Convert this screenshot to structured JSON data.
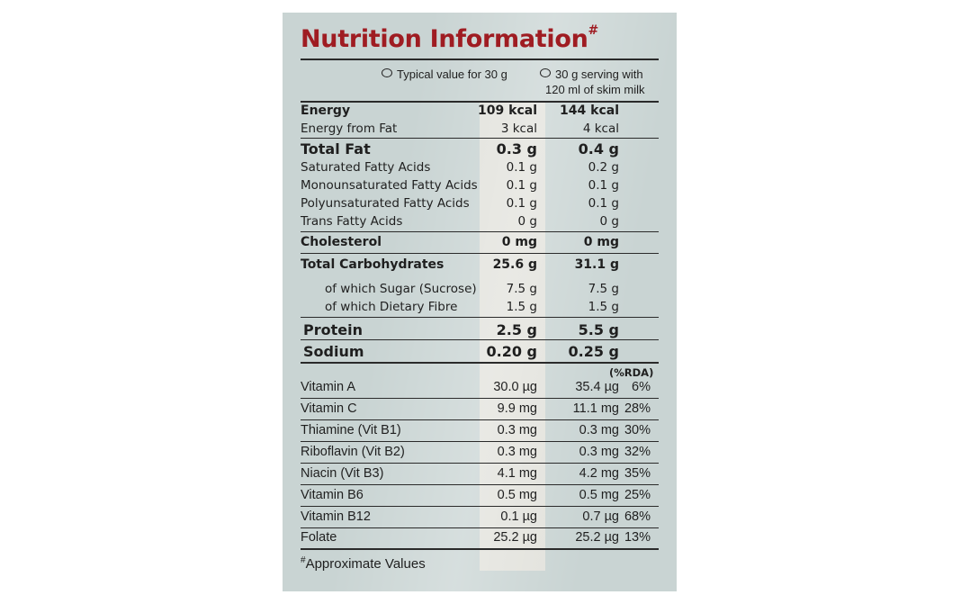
{
  "title": "Nutrition Information",
  "title_mark": "#",
  "columns": {
    "col1": "Typical value for 30 g",
    "col2_line1": "30 g serving with",
    "col2_line2": "120 ml of skim milk"
  },
  "rows": [
    {
      "label": "Energy",
      "v1": "109 kcal",
      "v2": "144 kcal"
    },
    {
      "label": "Energy from Fat",
      "v1": "3 kcal",
      "v2": "4 kcal"
    },
    {
      "label": "Total Fat",
      "v1": "0.3 g",
      "v2": "0.4 g"
    },
    {
      "label": "Saturated Fatty Acids",
      "v1": "0.1 g",
      "v2": "0.2 g"
    },
    {
      "label": "Monounsaturated Fatty Acids",
      "v1": "0.1 g",
      "v2": "0.1 g"
    },
    {
      "label": "Polyunsaturated Fatty Acids",
      "v1": "0.1 g",
      "v2": "0.1 g"
    },
    {
      "label": "Trans Fatty Acids",
      "v1": "0 g",
      "v2": "0 g"
    },
    {
      "label": "Cholesterol",
      "v1": "0 mg",
      "v2": "0 mg"
    },
    {
      "label": "Total Carbohydrates",
      "v1": "25.6 g",
      "v2": "31.1 g"
    },
    {
      "label": "of which Sugar (Sucrose)",
      "v1": "7.5 g",
      "v2": "7.5 g"
    },
    {
      "label": "of which Dietary Fibre",
      "v1": "1.5 g",
      "v2": "1.5 g"
    },
    {
      "label": "Protein",
      "v1": "2.5 g",
      "v2": "5.5 g"
    },
    {
      "label": "Sodium",
      "v1": "0.20 g",
      "v2": "0.25 g"
    }
  ],
  "rda_header": "(%RDA)",
  "vitamins": [
    {
      "label": "Vitamin A",
      "v1": "30.0 µg",
      "v2": "35.4 µg",
      "rda": "6%"
    },
    {
      "label": "Vitamin C",
      "v1": "9.9 mg",
      "v2": "11.1 mg",
      "rda": "28%"
    },
    {
      "label": "Thiamine (Vit B1)",
      "v1": "0.3 mg",
      "v2": "0.3 mg",
      "rda": "30%"
    },
    {
      "label": "Riboflavin (Vit B2)",
      "v1": "0.3 mg",
      "v2": "0.3 mg",
      "rda": "32%"
    },
    {
      "label": "Niacin (Vit B3)",
      "v1": "4.1 mg",
      "v2": "4.2 mg",
      "rda": "35%"
    },
    {
      "label": "Vitamin B6",
      "v1": "0.5 mg",
      "v2": "0.5 mg",
      "rda": "25%"
    },
    {
      "label": "Vitamin B12",
      "v1": "0.1 µg",
      "v2": "0.7 µg",
      "rda": "68%"
    },
    {
      "label": "Folate",
      "v1": "25.2 µg",
      "v2": "25.2 µg",
      "rda": "13%"
    }
  ],
  "footnote_mark": "#",
  "footnote": "Approximate Values",
  "colors": {
    "title": "#9f1c22",
    "panel": "#c9d4d3"
  }
}
